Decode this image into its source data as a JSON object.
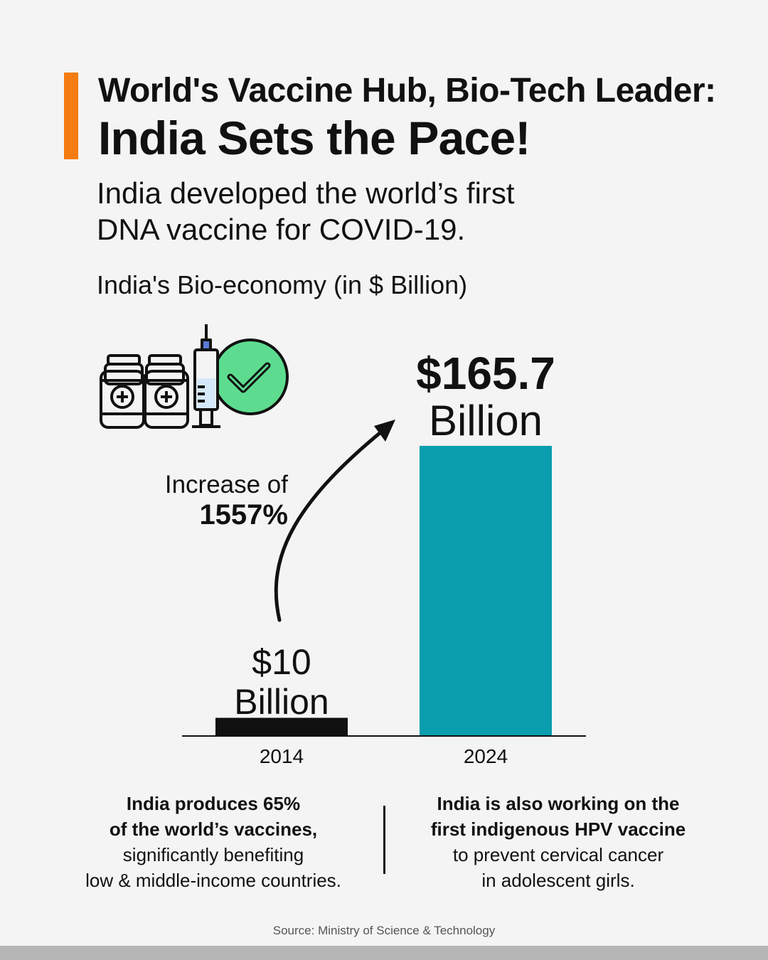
{
  "header": {
    "title_line1": "World's Vaccine Hub, Bio-Tech Leader:",
    "title_line2": "India Sets the Pace!",
    "subtitle_line1": "India developed the world’s first",
    "subtitle_line2": "DNA vaccine for COVID-19."
  },
  "colors": {
    "accent": "#f47c12",
    "bar_2014": "#111111",
    "bar_2024": "#0a9dad",
    "check_circle": "#5ddc8f"
  },
  "icon": {
    "name": "vaccine-vials-syringe-check-icon"
  },
  "chart_data": {
    "type": "bar",
    "title": "India's Bio-economy (in $ Billion)",
    "categories": [
      "2014",
      "2024"
    ],
    "values": [
      10,
      165.7
    ],
    "unit": "$ Billion",
    "value_labels": [
      {
        "line1": "$10",
        "line2": "Billion"
      },
      {
        "line1": "$165.7",
        "line2": "Billion"
      }
    ],
    "annotation": {
      "line1": "Increase of",
      "line2": "1557%"
    },
    "ylim": [
      0,
      165.7
    ],
    "grid": false
  },
  "notes": {
    "left": {
      "bold1": "India produces 65%",
      "bold2": "of the world’s vaccines,",
      "line3": "significantly benefiting",
      "line4": "low & middle-income countries."
    },
    "right": {
      "bold1": "India is also working on the",
      "bold2": "first indigenous HPV vaccine",
      "line3": "to prevent cervical cancer",
      "line4": "in adolescent girls."
    }
  },
  "source": "Source: Ministry of Science & Technology"
}
